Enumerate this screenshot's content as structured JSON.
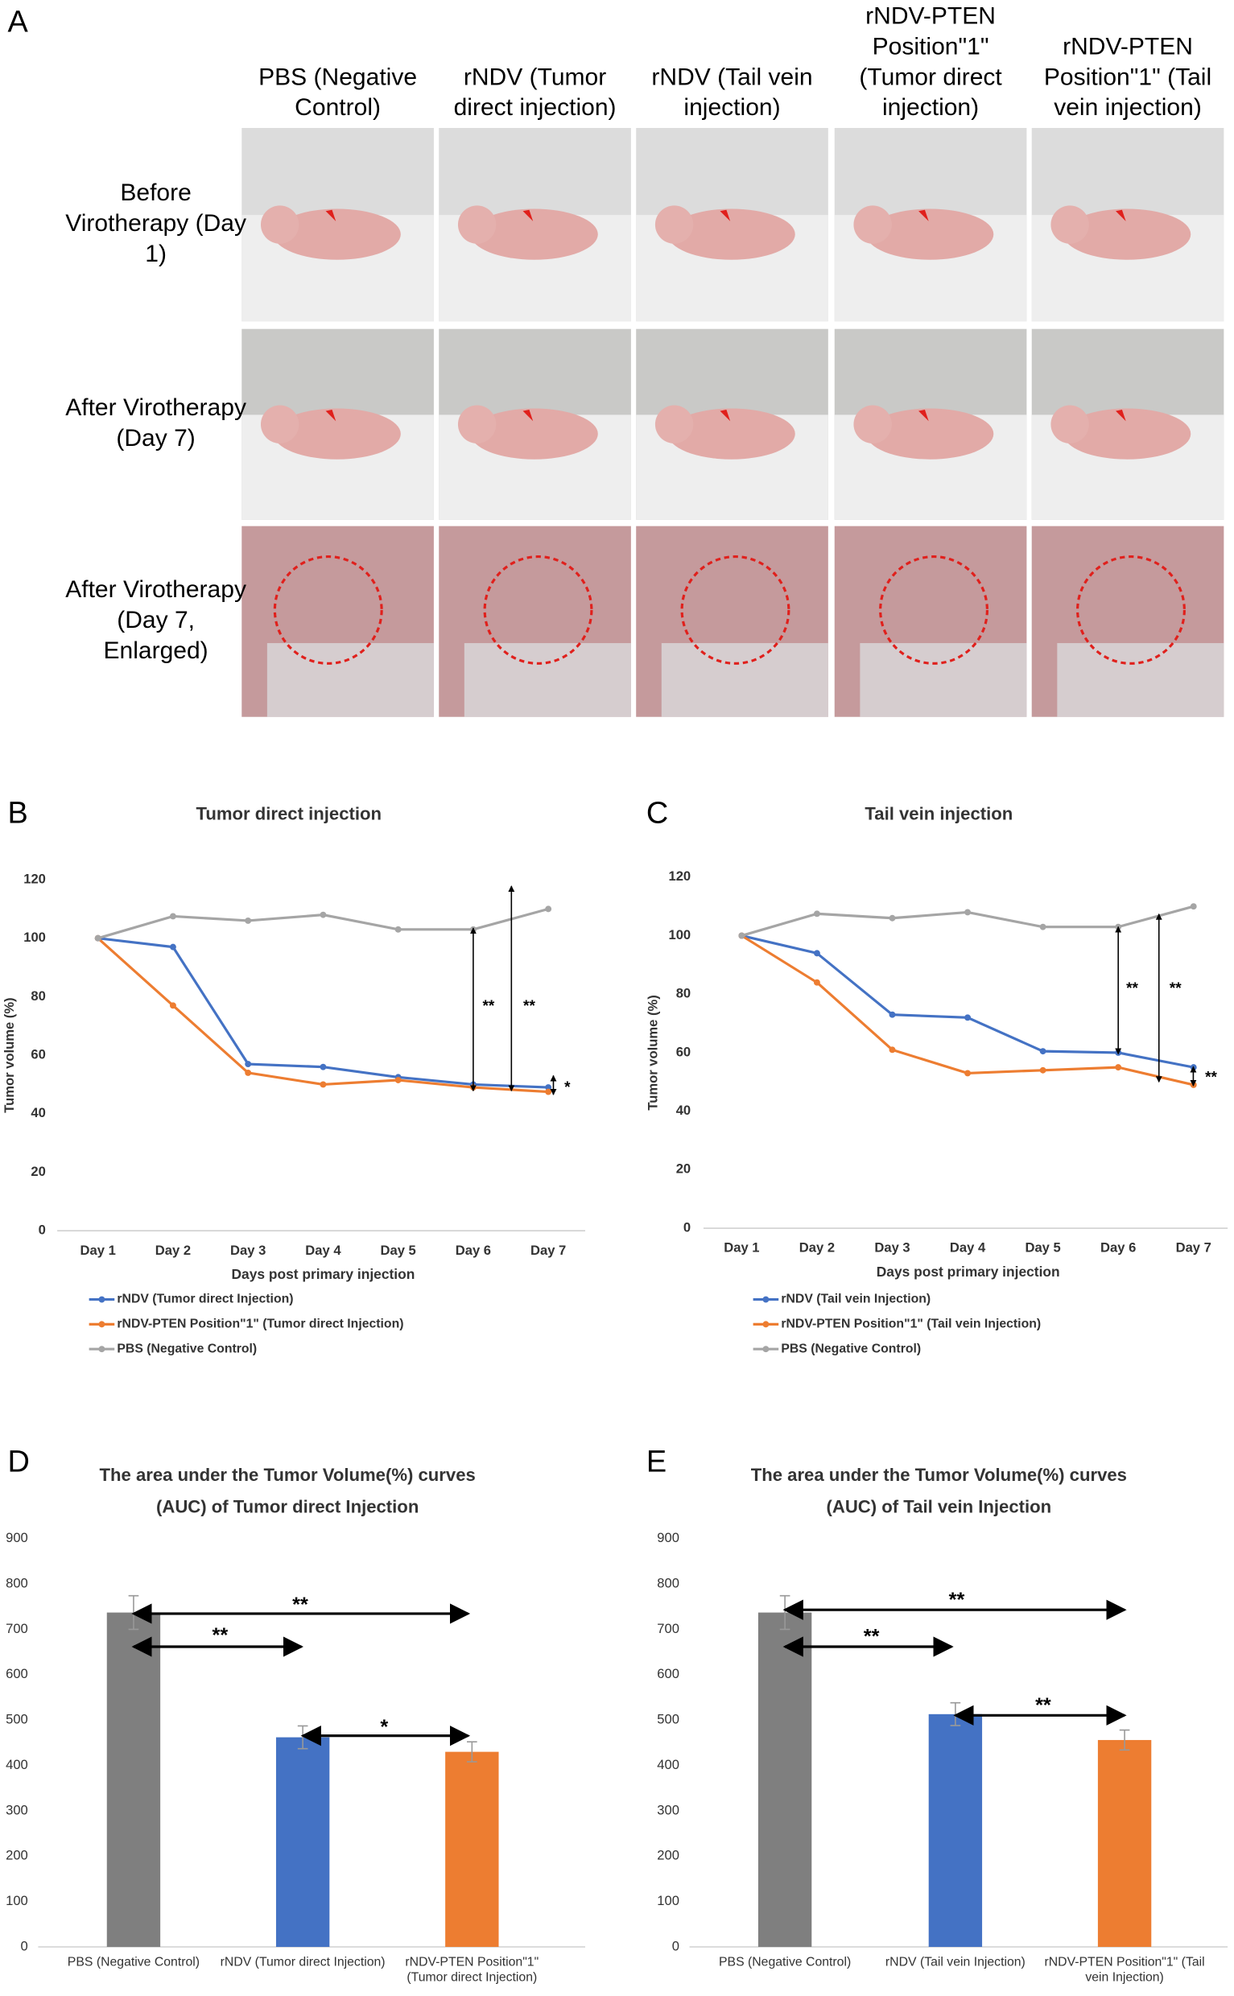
{
  "panel_a": {
    "label": "A",
    "columns": [
      "PBS (Negative Control)",
      "rNDV (Tumor direct injection)",
      "rNDV (Tail vein injection)",
      "rNDV-PTEN Position\"1\" (Tumor direct injection)",
      "rNDV-PTEN Position\"1\" (Tail vein injection)"
    ],
    "rows": [
      "Before Virotherapy (Day 1)",
      "After Virotherapy (Day 7)",
      "After Virotherapy (Day 7, Enlarged)"
    ]
  },
  "chart_data": [
    {
      "type": "line",
      "panel_label": "B",
      "title": [
        "Tumor direct injection"
      ],
      "x_label": "Days post primary injection",
      "y_label": "Tumor volume (%)",
      "categories": [
        "Day 1",
        "Day 2",
        "Day 3",
        "Day 4",
        "Day 5",
        "Day 6",
        "Day 7"
      ],
      "series": [
        {
          "name": "rNDV (Tumor direct Injection)",
          "color": "#4472c4",
          "values": [
            100,
            97,
            57,
            56,
            52.5,
            50,
            49
          ]
        },
        {
          "name": "rNDV-PTEN Position\"1\" (Tumor direct Injection)",
          "color": "#ed7d31",
          "values": [
            100,
            77,
            54,
            50,
            51.5,
            49,
            47.5
          ]
        },
        {
          "name": "PBS (Negative Control)",
          "color": "#a5a5a5",
          "values": [
            100,
            107.5,
            106,
            108,
            103,
            103,
            110
          ]
        }
      ],
      "ylim": [
        0,
        120
      ],
      "yticks": [
        0,
        20,
        40,
        60,
        80,
        100,
        120
      ],
      "grid": false,
      "annotations": [
        "**",
        "**",
        "*"
      ]
    },
    {
      "type": "line",
      "panel_label": "C",
      "title": [
        "Tail vein injection"
      ],
      "x_label": "Days post primary injection",
      "y_label": "Tumor volume (%)",
      "categories": [
        "Day 1",
        "Day 2",
        "Day 3",
        "Day 4",
        "Day 5",
        "Day 6",
        "Day 7"
      ],
      "series": [
        {
          "name": "rNDV (Tail vein Injection)",
          "color": "#4472c4",
          "values": [
            100,
            94,
            73,
            72,
            60.5,
            60,
            55
          ]
        },
        {
          "name": "rNDV-PTEN Position\"1\" (Tail vein Injection)",
          "color": "#ed7d31",
          "values": [
            100,
            84,
            61,
            53,
            54,
            55,
            49
          ]
        },
        {
          "name": "PBS (Negative Control)",
          "color": "#a5a5a5",
          "values": [
            100,
            107.5,
            106,
            108,
            103,
            103,
            110
          ]
        }
      ],
      "ylim": [
        0,
        120
      ],
      "yticks": [
        0,
        20,
        40,
        60,
        80,
        100,
        120
      ],
      "grid": false,
      "annotations": [
        "**",
        "**",
        "**"
      ]
    },
    {
      "type": "bar",
      "panel_label": "D",
      "title": [
        "The area under the Tumor Volume(%) curves",
        "(AUC) of Tumor direct Injection"
      ],
      "categories": [
        "PBS (Negative Control)",
        "rNDV (Tumor direct Injection)",
        "rNDV-PTEN Position\"1\" (Tumor direct Injection)"
      ],
      "values": [
        737,
        462,
        430
      ],
      "errors": [
        37,
        25,
        22
      ],
      "colors": [
        "#7f7f7f",
        "#4472c4",
        "#ed7d31"
      ],
      "ylim": [
        0,
        900
      ],
      "yticks": [
        0,
        100,
        200,
        300,
        400,
        500,
        600,
        700,
        800,
        900
      ],
      "grid": false,
      "annotations": [
        "**",
        "**",
        "*"
      ]
    },
    {
      "type": "bar",
      "panel_label": "E",
      "title": [
        "The area under the Tumor Volume(%) curves",
        "(AUC) of Tail vein Injection"
      ],
      "categories": [
        "PBS (Negative Control)",
        "rNDV (Tail vein Injection)",
        "rNDV-PTEN Position\"1\" (Tail vein Injection)"
      ],
      "values": [
        737,
        513,
        456
      ],
      "errors": [
        37,
        25,
        22
      ],
      "colors": [
        "#7f7f7f",
        "#4472c4",
        "#ed7d31"
      ],
      "ylim": [
        0,
        900
      ],
      "yticks": [
        0,
        100,
        200,
        300,
        400,
        500,
        600,
        700,
        800,
        900
      ],
      "grid": false,
      "annotations": [
        "**",
        "**",
        "**"
      ]
    }
  ]
}
